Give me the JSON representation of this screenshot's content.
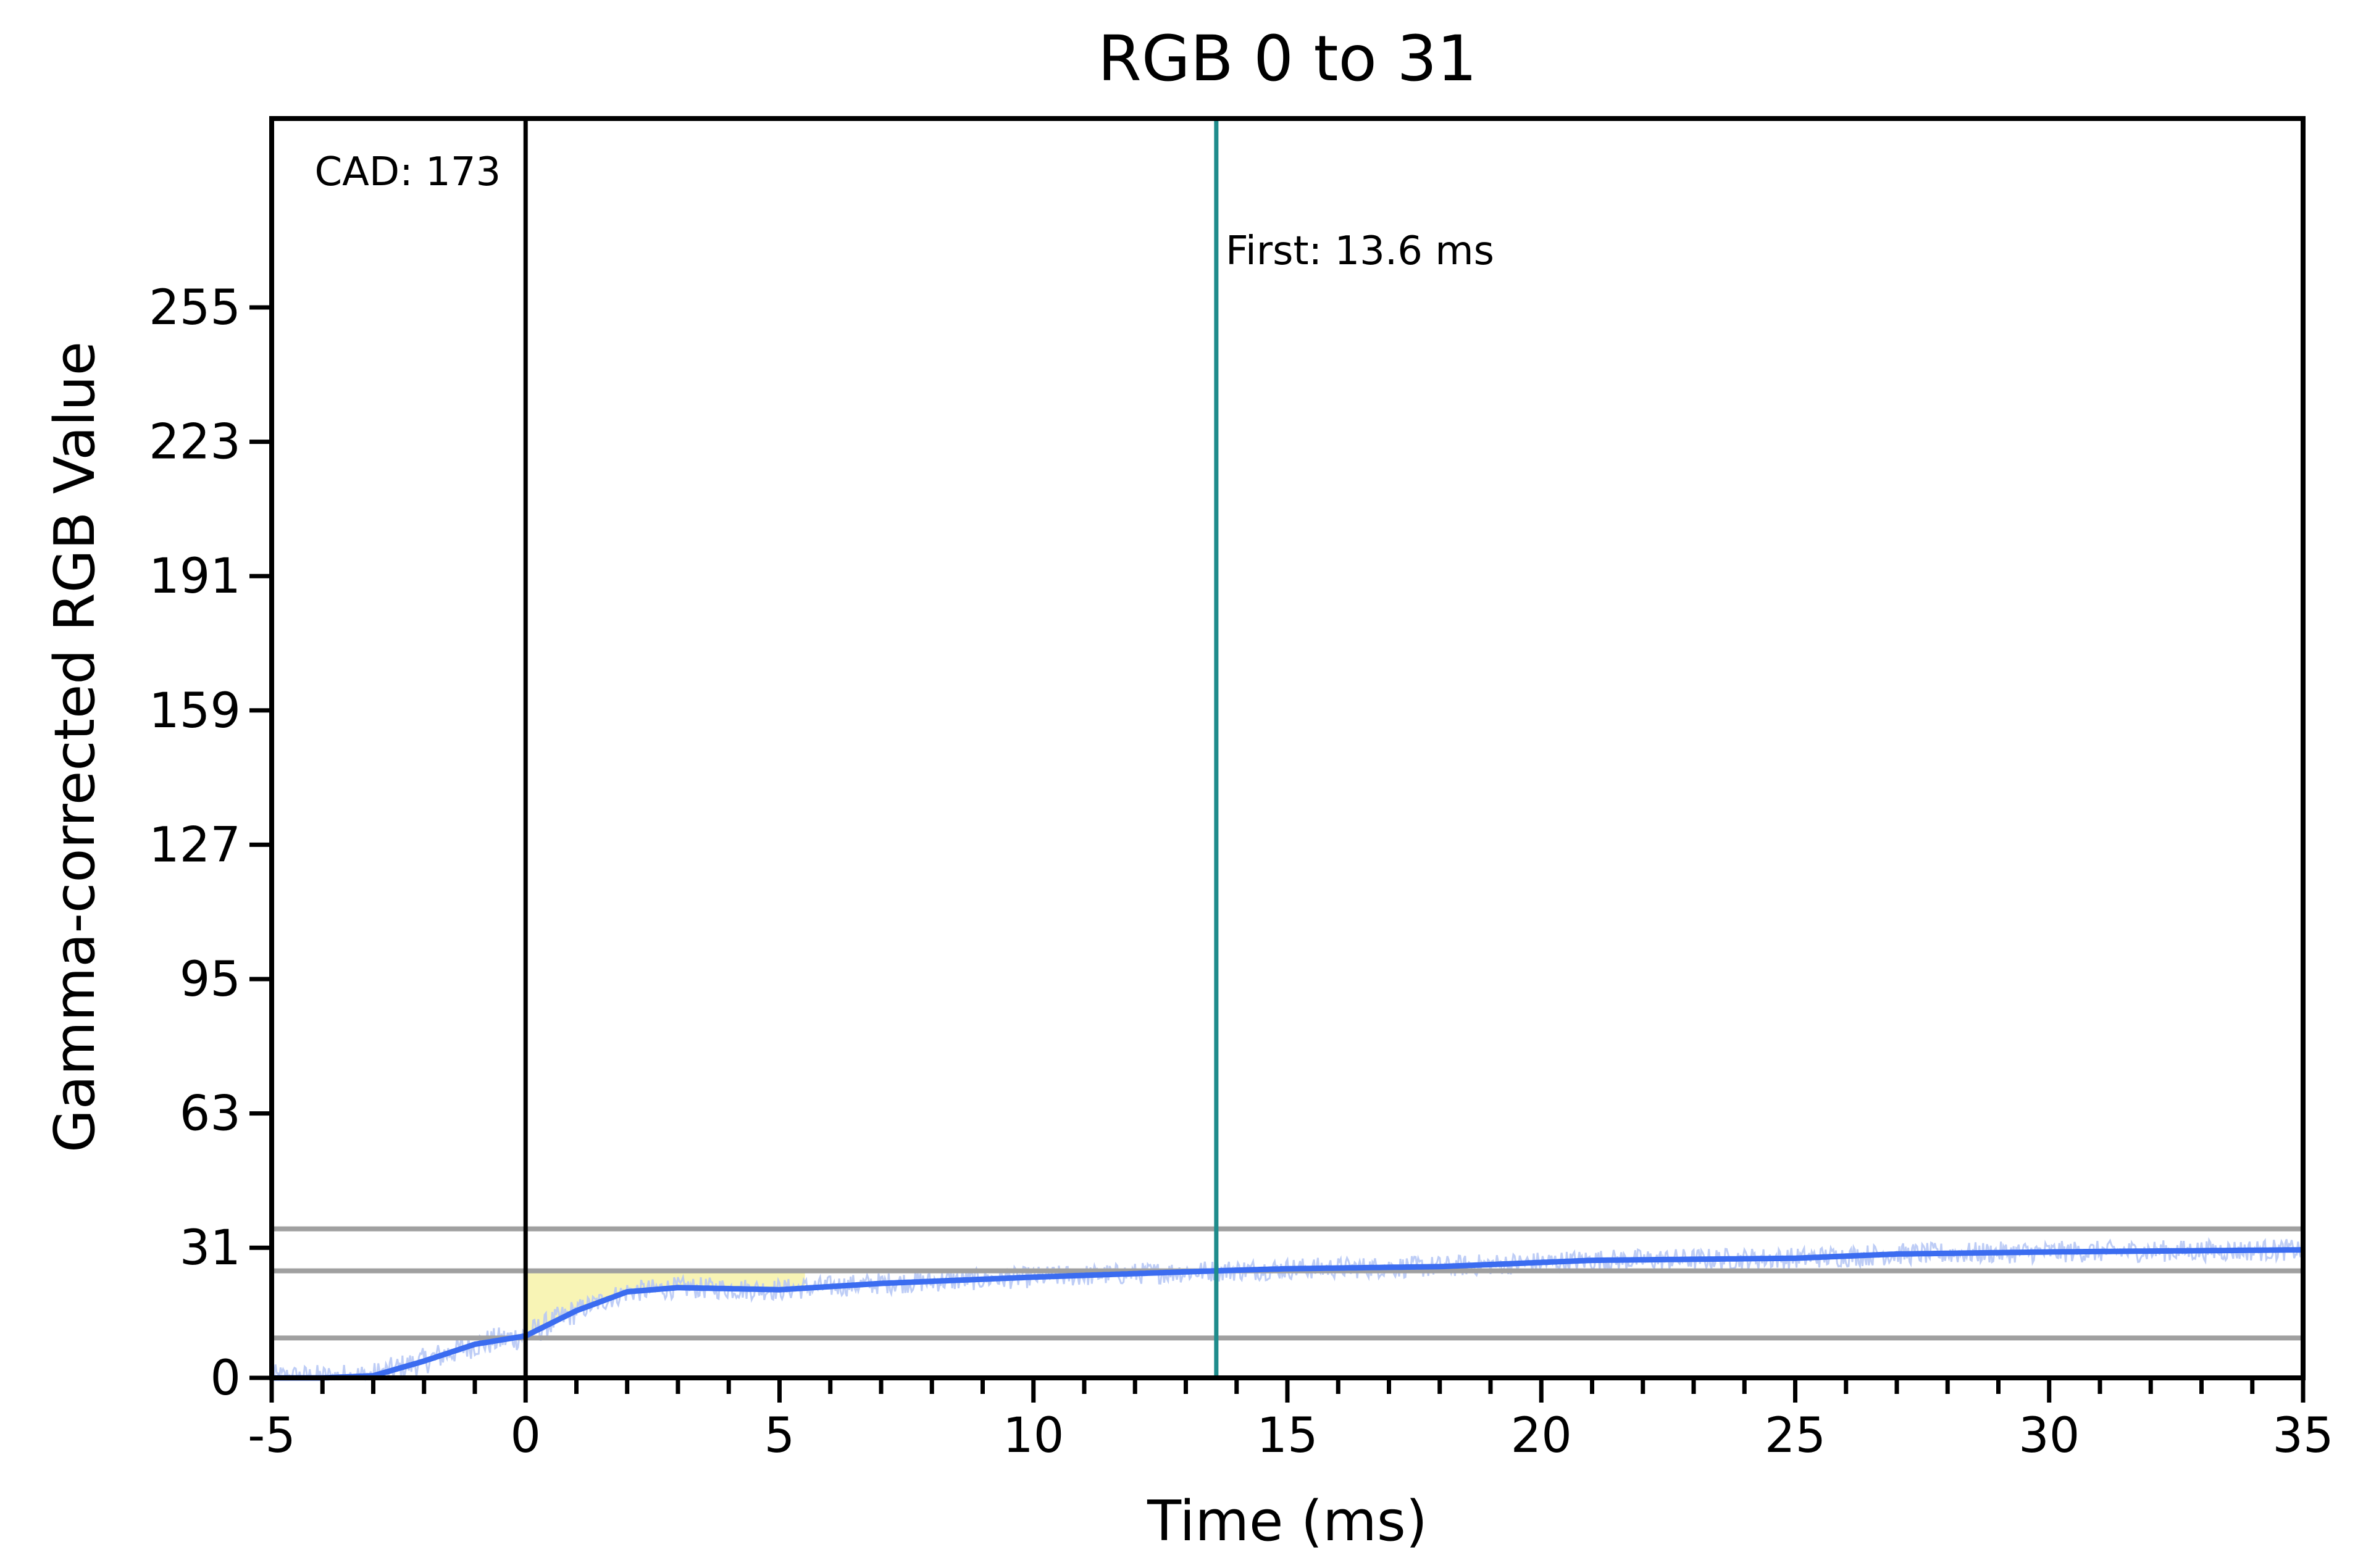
{
  "chart_data": {
    "type": "line",
    "title": "RGB 0 to 31",
    "xlabel": "Time (ms)",
    "ylabel": "Gamma-corrected RGB Value",
    "xlim": [
      -5,
      35
    ],
    "ylim": [
      0,
      300
    ],
    "x_ticks": [
      -5,
      0,
      5,
      10,
      15,
      20,
      25,
      30,
      35
    ],
    "y_ticks": [
      0,
      31,
      63,
      95,
      127,
      159,
      191,
      223,
      255
    ],
    "reference_lines": [
      9.5,
      25.5,
      35.5
    ],
    "colors": {
      "smoothed": "#3b6cf0",
      "raw": "#b7c8f5",
      "marker": "#1f8c8c",
      "fill": "#f7f2a8",
      "reference": "#a0a0a0"
    },
    "series": [
      {
        "x": [
          -5,
          -4,
          -3,
          -2,
          -1,
          0,
          1,
          2,
          3,
          5,
          7,
          10,
          13.6,
          15,
          18,
          21,
          25,
          27,
          30,
          35
        ],
        "values": [
          0,
          0,
          0.5,
          4,
          8,
          10,
          16,
          20.5,
          21.5,
          21,
          22.5,
          24,
          25.5,
          26,
          26.5,
          28,
          28.5,
          29.5,
          30,
          30.5
        ]
      }
    ],
    "annotations": {
      "cad": {
        "x": 0,
        "text": "CAD: 173"
      },
      "first": {
        "x": 13.6,
        "text": "First: 13.6 ms"
      }
    },
    "fill_region": {
      "x_start": 0,
      "x_end": 5.5,
      "target": 25.5
    }
  }
}
